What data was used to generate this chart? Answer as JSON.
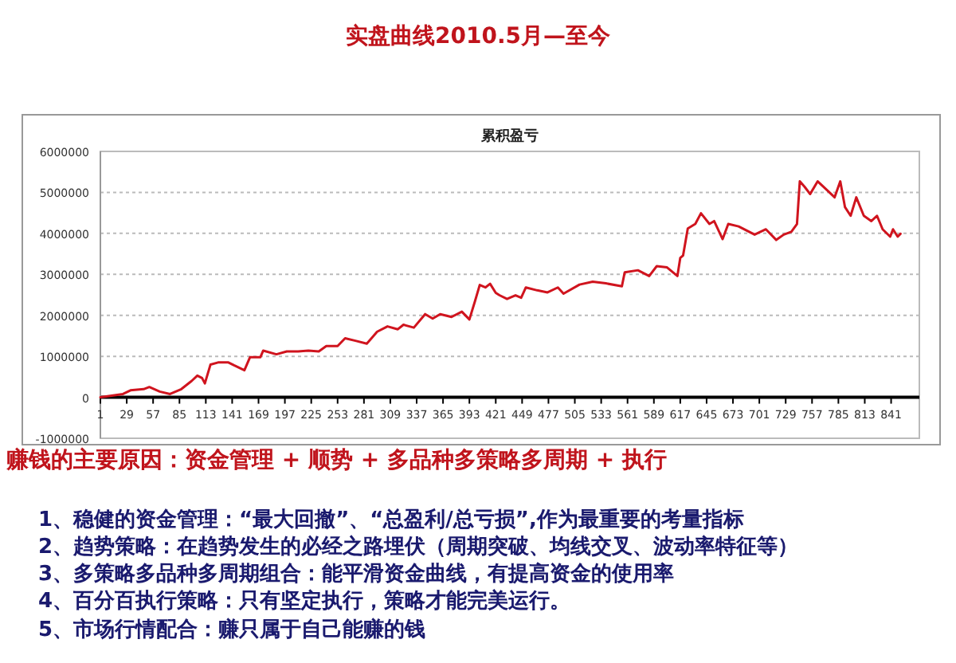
{
  "chart_data": {
    "type": "line",
    "title": "实盘曲线2010.5月—至今",
    "subtitle": "累积盈亏",
    "x": [
      1,
      25,
      33,
      47,
      53,
      64,
      75,
      87,
      98,
      104,
      109,
      112,
      118,
      126,
      137,
      143,
      154,
      160,
      171,
      174,
      188,
      199,
      211,
      222,
      233,
      241,
      253,
      261,
      272,
      284,
      289,
      295,
      306,
      317,
      323,
      334,
      346,
      354,
      362,
      374,
      385,
      393,
      399,
      404,
      410,
      415,
      421,
      425,
      433,
      442,
      448,
      453,
      465,
      476,
      487,
      493,
      510,
      524,
      538,
      555,
      558,
      572,
      584,
      592,
      603,
      614,
      617,
      620,
      625,
      633,
      639,
      648,
      653,
      662,
      668,
      679,
      696,
      708,
      719,
      727,
      735,
      741,
      744,
      749,
      755,
      763,
      775,
      781,
      787,
      792,
      798,
      804,
      812,
      820,
      826,
      832,
      840,
      843,
      848,
      851
    ],
    "series": [
      {
        "color": "#d0141e",
        "values": [
          0,
          80000,
          170000,
          200000,
          250000,
          140000,
          80000,
          200000,
          400000,
          530000,
          470000,
          340000,
          800000,
          850000,
          850000,
          780000,
          660000,
          980000,
          980000,
          1140000,
          1050000,
          1120000,
          1120000,
          1140000,
          1120000,
          1250000,
          1250000,
          1440000,
          1380000,
          1310000,
          1440000,
          1600000,
          1730000,
          1660000,
          1770000,
          1700000,
          2030000,
          1920000,
          2030000,
          1960000,
          2090000,
          1900000,
          2350000,
          2740000,
          2680000,
          2770000,
          2550000,
          2490000,
          2400000,
          2490000,
          2430000,
          2680000,
          2610000,
          2560000,
          2680000,
          2530000,
          2750000,
          2820000,
          2780000,
          2710000,
          3050000,
          3100000,
          2960000,
          3200000,
          3170000,
          2960000,
          3400000,
          3460000,
          4120000,
          4230000,
          4490000,
          4230000,
          4300000,
          3860000,
          4230000,
          4170000,
          3970000,
          4100000,
          3840000,
          3970000,
          4040000,
          4230000,
          5270000,
          5140000,
          4960000,
          5270000,
          5010000,
          4880000,
          5270000,
          4640000,
          4430000,
          4880000,
          4430000,
          4300000,
          4430000,
          4100000,
          3920000,
          4100000,
          3920000,
          3990000
        ]
      }
    ],
    "xlim": [
      1,
      871
    ],
    "xticks": [
      1,
      29,
      57,
      85,
      113,
      141,
      169,
      197,
      225,
      253,
      281,
      309,
      337,
      365,
      393,
      421,
      449,
      477,
      505,
      533,
      561,
      589,
      617,
      645,
      673,
      701,
      729,
      757,
      785,
      813,
      841
    ],
    "ylim": [
      -1000000,
      6000000
    ],
    "yticks": [
      -1000000,
      0,
      1000000,
      2000000,
      3000000,
      4000000,
      5000000,
      6000000
    ],
    "grid": "y",
    "marker": "none",
    "line_style": "solid",
    "annotations": [
      "赚钱的主要原因：资金管理 + 顺势 + 多品种多策略多周期 + 执行",
      "1、稳健的资金管理：“最大回撤”、“总盈利/总亏损”,作为最重要的考量指标",
      "2、趋势策略：在趋势发生的必经之路埋伏（周期突破、均线交叉、波动率特征等）",
      "3、多策略多品种多周期组合：能平滑资金曲线，有提高资金的使用率",
      "4、百分百执行策略：只有坚定执行，策略才能完美运行。",
      "5、市场行情配合：赚只属于自己能赚的钱"
    ]
  }
}
